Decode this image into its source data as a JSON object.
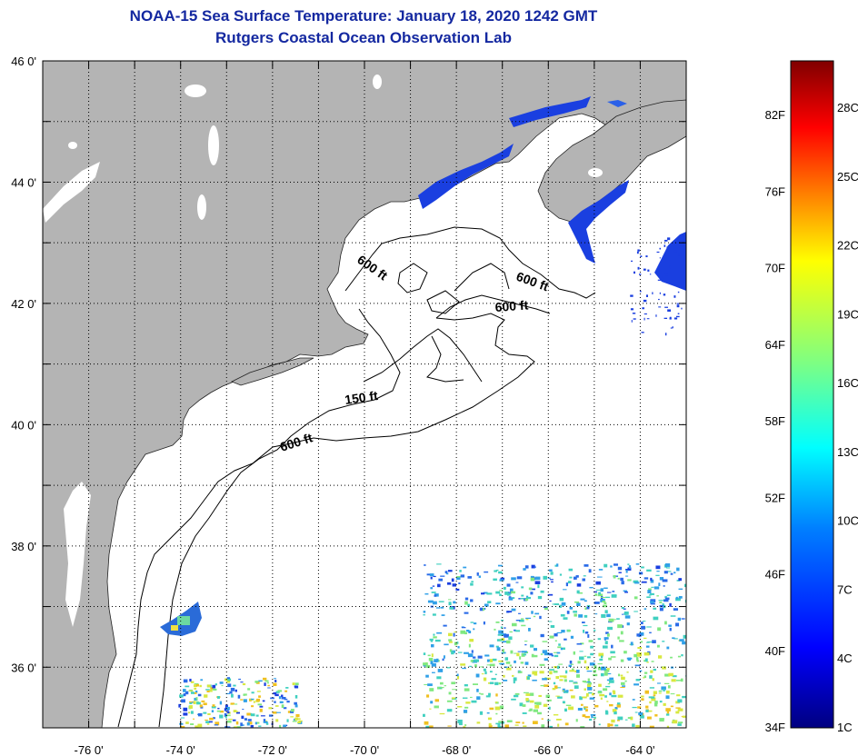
{
  "title": {
    "line1": "NOAA-15 Sea Surface Temperature:  January 18, 2020 1242 GMT",
    "line2": "Rutgers Coastal Ocean Observation Lab"
  },
  "map": {
    "lon_range": [
      -77,
      -63
    ],
    "lat_range": [
      35,
      46
    ],
    "lat_ticks": [
      {
        "value": 46,
        "label": "46 0'"
      },
      {
        "value": 44,
        "label": "44 0'"
      },
      {
        "value": 42,
        "label": "42 0'"
      },
      {
        "value": 40,
        "label": "40 0'"
      },
      {
        "value": 38,
        "label": "38 0'"
      },
      {
        "value": 36,
        "label": "36 0'"
      }
    ],
    "lon_ticks": [
      {
        "value": -76,
        "label": "-76 0'"
      },
      {
        "value": -74,
        "label": "-74 0'"
      },
      {
        "value": -72,
        "label": "-72 0'"
      },
      {
        "value": -70,
        "label": "-70 0'"
      },
      {
        "value": -68,
        "label": "-68 0'"
      },
      {
        "value": -66,
        "label": "-66 0'"
      },
      {
        "value": -64,
        "label": "-64 0'"
      }
    ],
    "grid": "dotted",
    "land_color": "#b4b4b4",
    "contour_labels": [
      "600 ft",
      "600 ft",
      "600 ft",
      "150 ft",
      "600 ft"
    ]
  },
  "colorbar": {
    "f_labels": [
      "82F",
      "76F",
      "70F",
      "64F",
      "58F",
      "52F",
      "46F",
      "40F",
      "34F"
    ],
    "c_labels": [
      "28C",
      "25C",
      "22C",
      "19C",
      "16C",
      "13C",
      "10C",
      "7C",
      "4C",
      "1C"
    ],
    "colors": [
      "#800000",
      "#ff0000",
      "#ff8000",
      "#ffff00",
      "#80ff80",
      "#00ffff",
      "#0080ff",
      "#0000ff",
      "#000080"
    ]
  }
}
